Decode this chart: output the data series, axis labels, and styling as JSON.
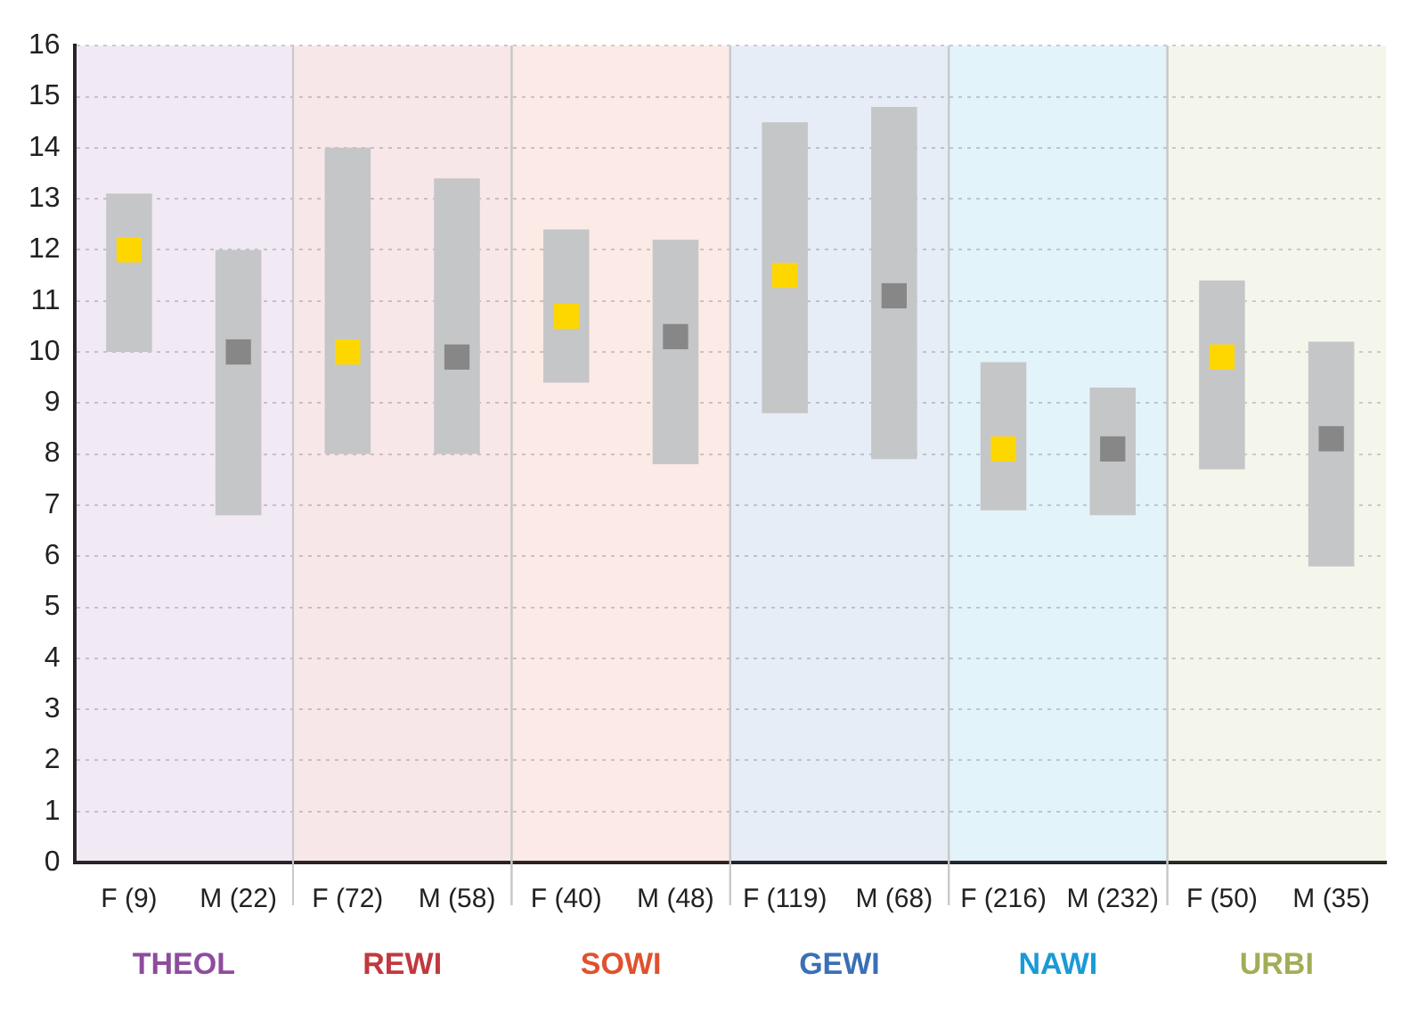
{
  "chart_data": {
    "type": "bar",
    "categories": [
      "F (9)",
      "M (22)",
      "F (72)",
      "M (58)",
      "F (40)",
      "M (48)",
      "F (119)",
      "M (68)",
      "F (216)",
      "M (232)",
      "F (50)",
      "M (35)"
    ],
    "series": [
      {
        "color": "#c5c6c8",
        "base": [
          10,
          6.8,
          8,
          8,
          9.4,
          7.8,
          8.8,
          7.9,
          6.9,
          6.8,
          7.7,
          5.8
        ],
        "values": [
          3.1,
          5.2,
          6,
          5.4,
          3.0,
          4.4,
          5.7,
          6.9,
          2.9,
          2.5,
          3.7,
          4.4
        ]
      },
      {
        "type": "scatter",
        "color": "#ffd700",
        "x": [
          "F (9)",
          "F (72)",
          "F (40)",
          "F (119)",
          "F (216)",
          "F (50)"
        ],
        "values": [
          12.0,
          10.0,
          10.7,
          11.5,
          8.1,
          9.9
        ]
      },
      {
        "type": "scatter",
        "color": "#878787",
        "x": [
          "M (22)",
          "M (58)",
          "M (48)",
          "M (68)",
          "M (232)",
          "M (35)"
        ],
        "values": [
          10.0,
          9.9,
          10.3,
          11.1,
          8.1,
          8.3
        ]
      }
    ],
    "bands": [
      {
        "axis": "x",
        "from": "F (9)",
        "to": "M (22)",
        "label": "THEOL",
        "color": "#8e4c9e"
      },
      {
        "axis": "x",
        "from": "F (72)",
        "to": "M (58)",
        "label": "REWI",
        "color": "#c0393f"
      },
      {
        "axis": "x",
        "from": "F (40)",
        "to": "M (48)",
        "label": "SOWI",
        "color": "#e0512e"
      },
      {
        "axis": "x",
        "from": "F (119)",
        "to": "M (68)",
        "label": "GEWI",
        "color": "#3b6fb6"
      },
      {
        "axis": "x",
        "from": "F (216)",
        "to": "M (232)",
        "label": "NAWI",
        "color": "#1a9ad6"
      },
      {
        "axis": "x",
        "from": "F (50)",
        "to": "M (35)",
        "label": "URBI",
        "color": "#a3ad57"
      }
    ],
    "ylim": [
      0,
      16
    ],
    "yticks": [
      0,
      1,
      2,
      3,
      4,
      5,
      6,
      7,
      8,
      9,
      10,
      11,
      12,
      13,
      14,
      15,
      16
    ],
    "grid": "y",
    "legend": false,
    "marker": "square"
  }
}
